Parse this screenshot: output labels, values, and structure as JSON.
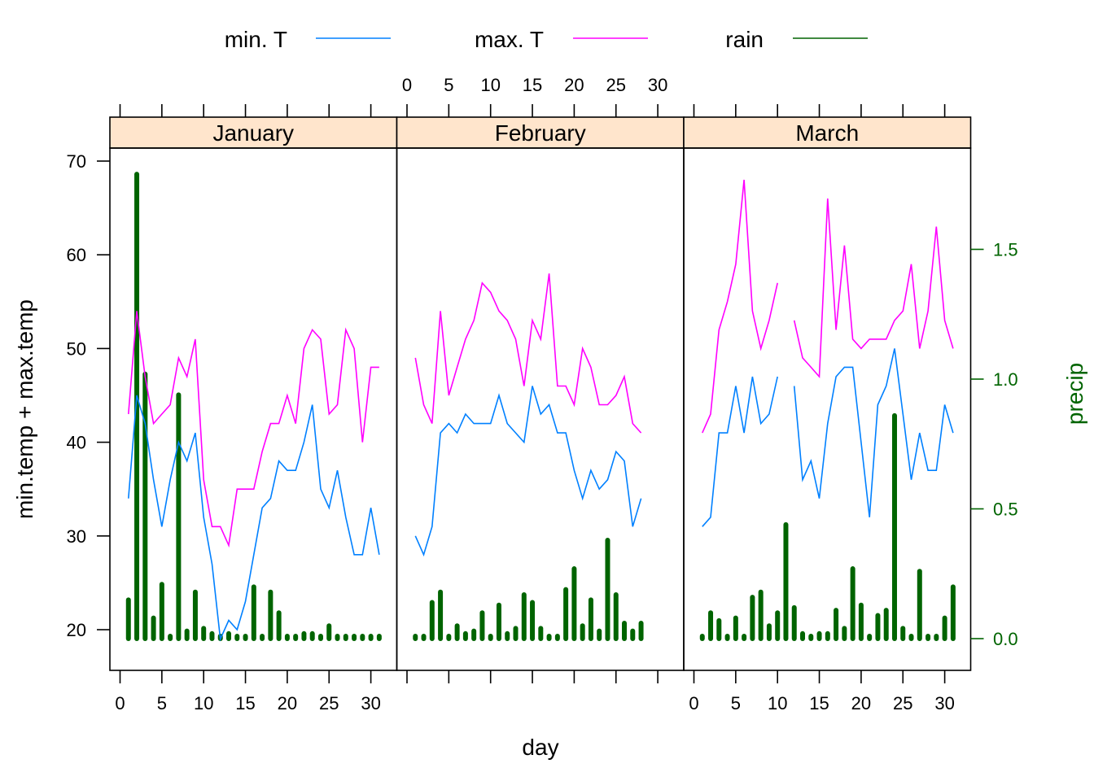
{
  "colors": {
    "min": "#0080ff",
    "max": "#ff00ff",
    "rain": "#006400",
    "strip": "#ffe5cc"
  },
  "chart_data": {
    "type": "line",
    "xlabel": "day",
    "ylabel": "min.temp + max.temp",
    "y2label": "precip",
    "xlim": [
      0,
      33
    ],
    "ylim": [
      16,
      73
    ],
    "y2lim": [
      -0.13,
      1.95
    ],
    "xticks": [
      0,
      5,
      10,
      15,
      20,
      25,
      30
    ],
    "yticks": [
      20,
      30,
      40,
      50,
      60,
      70
    ],
    "y2ticks": [
      "0.0",
      "0.5",
      "1.0",
      "1.5"
    ],
    "y2tick_values": [
      0,
      0.5,
      1.0,
      1.5
    ],
    "legend": [
      {
        "key": "min",
        "label": "min. T"
      },
      {
        "key": "max",
        "label": "max. T"
      },
      {
        "key": "rain",
        "label": "rain"
      }
    ],
    "panels": [
      {
        "name": "January",
        "days": [
          1,
          2,
          3,
          4,
          5,
          6,
          7,
          8,
          9,
          10,
          11,
          12,
          13,
          14,
          15,
          16,
          17,
          18,
          19,
          20,
          21,
          22,
          23,
          24,
          25,
          26,
          27,
          28,
          29,
          30,
          31
        ],
        "min": [
          34,
          45,
          42,
          36,
          31,
          36,
          40,
          38,
          41,
          32,
          27,
          19,
          21,
          20,
          23,
          28,
          33,
          34,
          38,
          37,
          37,
          40,
          44,
          35,
          33,
          37,
          32,
          28,
          28,
          33,
          28
        ],
        "max": [
          43,
          54,
          47,
          42,
          43,
          44,
          49,
          47,
          51,
          36,
          31,
          31,
          29,
          35,
          35,
          35,
          39,
          42,
          42,
          45,
          42,
          50,
          52,
          51,
          43,
          44,
          52,
          50,
          40,
          48,
          48
        ],
        "rain": [
          0.14,
          1.78,
          1.01,
          0.07,
          0.2,
          0,
          0.93,
          0.02,
          0.17,
          0.03,
          0.01,
          0,
          0.01,
          0,
          0,
          0.19,
          0,
          0.17,
          0.09,
          0,
          0,
          0.01,
          0.01,
          0,
          0.04,
          0,
          0,
          0,
          0,
          0,
          0
        ]
      },
      {
        "name": "February",
        "days": [
          1,
          2,
          3,
          4,
          5,
          6,
          7,
          8,
          9,
          10,
          11,
          12,
          13,
          14,
          15,
          16,
          17,
          18,
          19,
          20,
          21,
          22,
          23,
          24,
          25,
          26,
          27,
          28
        ],
        "min": [
          30,
          28,
          31,
          41,
          42,
          41,
          43,
          42,
          42,
          42,
          45,
          42,
          41,
          40,
          46,
          43,
          44,
          41,
          41,
          37,
          34,
          37,
          35,
          36,
          39,
          38,
          31,
          34
        ],
        "max": [
          49,
          44,
          42,
          54,
          45,
          48,
          51,
          53,
          57,
          56,
          54,
          53,
          51,
          46,
          53,
          51,
          58,
          46,
          46,
          44,
          50,
          48,
          44,
          44,
          45,
          47,
          42,
          41
        ],
        "rain": [
          0,
          0,
          0.13,
          0.17,
          0,
          0.04,
          0.01,
          0.02,
          0.09,
          0,
          0.12,
          0.01,
          0.03,
          0.16,
          0.13,
          0.03,
          0,
          0,
          0.18,
          0.26,
          0.04,
          0.14,
          0.02,
          0.37,
          0.16,
          0.05,
          0.02,
          0.05
        ]
      },
      {
        "name": "March",
        "days": [
          1,
          2,
          3,
          4,
          5,
          6,
          7,
          8,
          9,
          10,
          11,
          12,
          13,
          14,
          15,
          16,
          17,
          18,
          19,
          20,
          21,
          22,
          23,
          24,
          25,
          26,
          27,
          28,
          29,
          30,
          31
        ],
        "min": [
          31,
          32,
          41,
          41,
          46,
          41,
          47,
          42,
          43,
          47,
          null,
          46,
          36,
          38,
          34,
          42,
          47,
          48,
          48,
          40,
          32,
          44,
          46,
          50,
          43,
          36,
          41,
          37,
          37,
          44,
          41
        ],
        "max": [
          41,
          43,
          52,
          55,
          59,
          68,
          54,
          50,
          53,
          57,
          null,
          53,
          49,
          48,
          47,
          66,
          52,
          61,
          51,
          50,
          51,
          51,
          51,
          53,
          54,
          59,
          50,
          54,
          63,
          53,
          50
        ],
        "rain": [
          0,
          0.09,
          0.06,
          0,
          0.07,
          0,
          0.15,
          0.17,
          0.04,
          0.09,
          0.43,
          0.11,
          0.01,
          0,
          0.01,
          0.01,
          0.1,
          0.03,
          0.26,
          0.12,
          0,
          0.08,
          0.1,
          0.85,
          0.03,
          0,
          0.25,
          0,
          0,
          0.07,
          0.19
        ]
      }
    ]
  }
}
